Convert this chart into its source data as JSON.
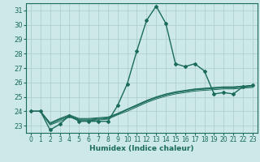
{
  "title": "",
  "xlabel": "Humidex (Indice chaleur)",
  "ylabel": "",
  "background_color": "#cce8e8",
  "grid_color": "#aacccc",
  "line_color": "#1a6b5a",
  "xlim": [
    -0.5,
    23.5
  ],
  "ylim": [
    22.5,
    31.5
  ],
  "x_ticks": [
    0,
    1,
    2,
    3,
    4,
    5,
    6,
    7,
    8,
    9,
    10,
    11,
    12,
    13,
    14,
    15,
    16,
    17,
    18,
    19,
    20,
    21,
    22,
    23
  ],
  "y_ticks": [
    23,
    24,
    25,
    26,
    27,
    28,
    29,
    30,
    31
  ],
  "series": [
    {
      "x": [
        0,
        1,
        2,
        3,
        4,
        5,
        6,
        7,
        8,
        9,
        10,
        11,
        12,
        13,
        14,
        15,
        16,
        17,
        18,
        19,
        20,
        21,
        22,
        23
      ],
      "y": [
        24.0,
        24.0,
        22.7,
        23.1,
        23.7,
        23.3,
        23.3,
        23.3,
        23.3,
        24.4,
        25.9,
        28.2,
        30.3,
        31.3,
        30.1,
        27.3,
        27.1,
        27.3,
        26.8,
        25.2,
        25.3,
        25.2,
        25.7,
        25.8
      ],
      "marker": "D",
      "markersize": 2.0,
      "linewidth": 1.0
    },
    {
      "x": [
        0,
        1,
        2,
        3,
        4,
        5,
        6,
        7,
        8,
        9,
        10,
        11,
        12,
        13,
        14,
        15,
        16,
        17,
        18,
        19,
        20,
        21,
        22,
        23
      ],
      "y": [
        24.0,
        24.0,
        23.2,
        23.5,
        23.75,
        23.5,
        23.5,
        23.55,
        23.6,
        23.85,
        24.15,
        24.45,
        24.75,
        25.0,
        25.2,
        25.35,
        25.45,
        25.55,
        25.6,
        25.65,
        25.7,
        25.7,
        25.75,
        25.8
      ],
      "marker": null,
      "markersize": 0,
      "linewidth": 0.7
    },
    {
      "x": [
        0,
        1,
        2,
        3,
        4,
        5,
        6,
        7,
        8,
        9,
        10,
        11,
        12,
        13,
        14,
        15,
        16,
        17,
        18,
        19,
        20,
        21,
        22,
        23
      ],
      "y": [
        24.0,
        24.0,
        23.05,
        23.3,
        23.6,
        23.35,
        23.35,
        23.4,
        23.45,
        23.75,
        24.0,
        24.3,
        24.6,
        24.85,
        25.05,
        25.2,
        25.3,
        25.4,
        25.45,
        25.5,
        25.55,
        25.55,
        25.6,
        25.65
      ],
      "marker": null,
      "markersize": 0,
      "linewidth": 0.7
    },
    {
      "x": [
        0,
        1,
        2,
        3,
        4,
        5,
        6,
        7,
        8,
        9,
        10,
        11,
        12,
        13,
        14,
        15,
        16,
        17,
        18,
        19,
        20,
        21,
        22,
        23
      ],
      "y": [
        24.0,
        24.0,
        23.1,
        23.4,
        23.65,
        23.4,
        23.4,
        23.45,
        23.5,
        23.8,
        24.1,
        24.38,
        24.68,
        24.93,
        25.13,
        25.28,
        25.38,
        25.48,
        25.53,
        25.58,
        25.62,
        25.62,
        25.68,
        25.72
      ],
      "marker": null,
      "markersize": 0,
      "linewidth": 0.7
    },
    {
      "x": [
        0,
        1,
        2,
        3,
        4,
        5,
        6,
        7,
        8,
        9,
        10,
        11,
        12,
        13,
        14,
        15,
        16,
        17,
        18,
        19,
        20,
        21,
        22,
        23
      ],
      "y": [
        24.0,
        24.0,
        23.15,
        23.45,
        23.7,
        23.45,
        23.45,
        23.5,
        23.55,
        23.82,
        24.12,
        24.42,
        24.72,
        24.97,
        25.17,
        25.32,
        25.42,
        25.52,
        25.57,
        25.62,
        25.66,
        25.66,
        25.72,
        25.76
      ],
      "marker": null,
      "markersize": 0,
      "linewidth": 0.7
    }
  ]
}
